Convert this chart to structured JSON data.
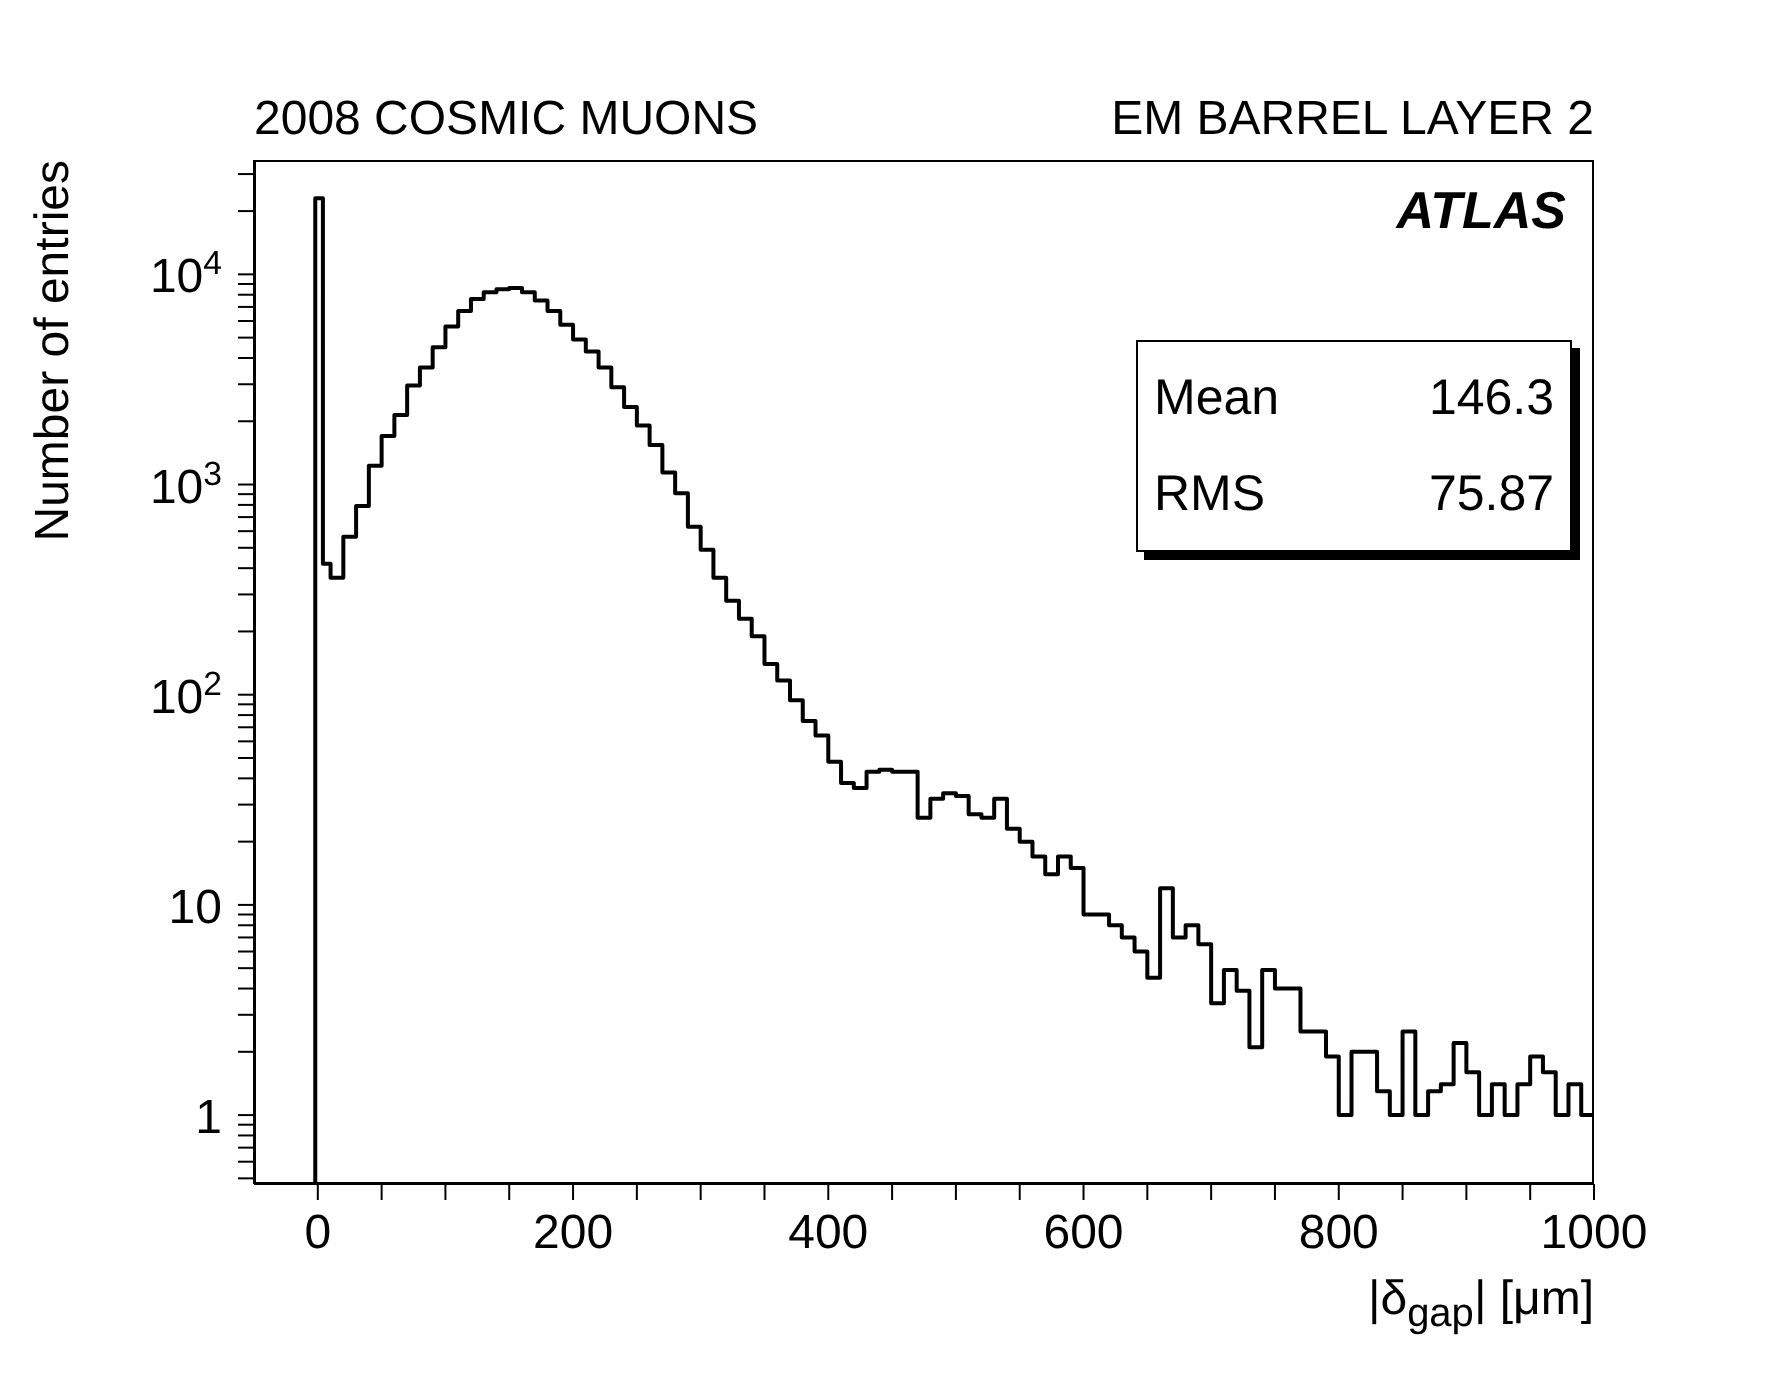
{
  "chart_data": {
    "type": "histogram",
    "title": "2008 COSMIC MUONS",
    "subtitle": "EM BARREL LAYER 2",
    "xlabel": "|δ$_{gap}$| [μm]",
    "ylabel": "Number of entries",
    "annotations": [
      "ATLAS",
      "Mean 146.3",
      "RMS 75.87"
    ],
    "bins": [
      -2,
      4,
      10,
      20,
      30,
      40,
      50,
      60,
      70,
      80,
      90,
      100,
      110,
      120,
      130,
      140,
      150,
      160,
      170,
      180,
      190,
      200,
      210,
      220,
      230,
      240,
      250,
      260,
      270,
      280,
      290,
      300,
      310,
      320,
      330,
      340,
      350,
      360,
      370,
      380,
      390,
      400,
      410,
      420,
      430,
      440,
      450,
      460,
      470,
      480,
      490,
      500,
      510,
      520,
      530,
      540,
      550,
      560,
      570,
      580,
      590,
      600,
      610,
      620,
      630,
      640,
      650,
      660,
      670,
      680,
      690,
      700,
      710,
      720,
      730,
      740,
      750,
      760,
      770,
      780,
      790,
      800,
      810,
      820,
      830,
      840,
      850,
      860,
      870,
      880,
      890,
      900,
      910,
      920,
      930,
      940,
      950,
      960,
      970,
      980,
      990,
      1000
    ],
    "values": [
      23000,
      420,
      360,
      565,
      790,
      1230,
      1700,
      2140,
      2960,
      3600,
      4500,
      5650,
      6700,
      7640,
      8230,
      8500,
      8600,
      8230,
      7500,
      6700,
      5760,
      4900,
      4300,
      3600,
      2900,
      2340,
      1910,
      1540,
      1140,
      910,
      630,
      490,
      360,
      280,
      230,
      190,
      140,
      117,
      94,
      75,
      64,
      48,
      38,
      36,
      43,
      44,
      43,
      43,
      26,
      32,
      34,
      33,
      27,
      26,
      32,
      23,
      20,
      17,
      14,
      17,
      15,
      9,
      9,
      8,
      7,
      6,
      4.5,
      12,
      7,
      8,
      6.5,
      3.4,
      4.9,
      3.9,
      2.1,
      4.9,
      4,
      4,
      2.5,
      2.5,
      1.9,
      1,
      2,
      2,
      1.3,
      1,
      2.5,
      1,
      1.3,
      1.4,
      2.2,
      1.6,
      1,
      1.4,
      1,
      1.4,
      1.9,
      1.6,
      1,
      1.4,
      1
    ],
    "color": "#000000",
    "log": "y",
    "grid": false,
    "legend": false,
    "xlim": [
      -50,
      1000
    ],
    "xticks": [
      0,
      {
        "value": 50,
        "label": null
      },
      {
        "value": 100,
        "label": null
      },
      {
        "value": 150,
        "label": null
      },
      200,
      {
        "value": 250,
        "label": null
      },
      {
        "value": 300,
        "label": null
      },
      {
        "value": 350,
        "label": null
      },
      400,
      {
        "value": 450,
        "label": null
      },
      {
        "value": 500,
        "label": null
      },
      {
        "value": 550,
        "label": null
      },
      600,
      {
        "value": 650,
        "label": null
      },
      {
        "value": 700,
        "label": null
      },
      {
        "value": 750,
        "label": null
      },
      800,
      {
        "value": 850,
        "label": null
      },
      {
        "value": 900,
        "label": null
      },
      {
        "value": 950,
        "label": null
      },
      1000
    ],
    "ylim": [
      0.47,
      35000
    ],
    "yticks": [
      {
        "value": 0.5,
        "label": null
      },
      {
        "value": 0.6,
        "label": null
      },
      {
        "value": 0.7,
        "label": null
      },
      {
        "value": 0.8,
        "label": null
      },
      {
        "value": 0.9,
        "label": null
      },
      1,
      {
        "value": 2,
        "label": null
      },
      {
        "value": 3,
        "label": null
      },
      {
        "value": 4,
        "label": null
      },
      {
        "value": 5,
        "label": null
      },
      {
        "value": 6,
        "label": null
      },
      {
        "value": 7,
        "label": null
      },
      {
        "value": 8,
        "label": null
      },
      {
        "value": 9,
        "label": null
      },
      10,
      {
        "value": 20,
        "label": null
      },
      {
        "value": 30,
        "label": null
      },
      {
        "value": 40,
        "label": null
      },
      {
        "value": 50,
        "label": null
      },
      {
        "value": 60,
        "label": null
      },
      {
        "value": 70,
        "label": null
      },
      {
        "value": 80,
        "label": null
      },
      {
        "value": 90,
        "label": null
      },
      {
        "value": 100,
        "label": "10$^{2}$"
      },
      {
        "value": 200,
        "label": null
      },
      {
        "value": 300,
        "label": null
      },
      {
        "value": 400,
        "label": null
      },
      {
        "value": 500,
        "label": null
      },
      {
        "value": 600,
        "label": null
      },
      {
        "value": 700,
        "label": null
      },
      {
        "value": 800,
        "label": null
      },
      {
        "value": 900,
        "label": null
      },
      {
        "value": 1000,
        "label": "10$^{3}$"
      },
      {
        "value": 2000,
        "label": null
      },
      {
        "value": 3000,
        "label": null
      },
      {
        "value": 4000,
        "label": null
      },
      {
        "value": 5000,
        "label": null
      },
      {
        "value": 6000,
        "label": null
      },
      {
        "value": 7000,
        "label": null
      },
      {
        "value": 8000,
        "label": null
      },
      {
        "value": 9000,
        "label": null
      },
      {
        "value": 10000,
        "label": "10$^{4}$"
      },
      {
        "value": 20000,
        "label": null
      },
      {
        "value": 30000,
        "label": null
      }
    ]
  }
}
